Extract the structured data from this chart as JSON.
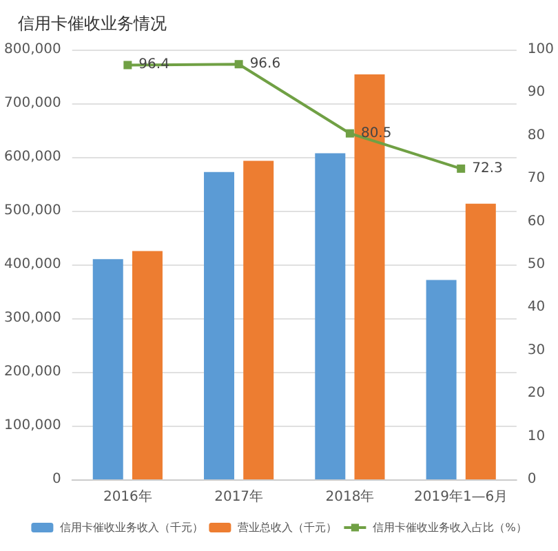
{
  "chart_data": {
    "type": "bar",
    "title": "信用卡催收业务情况",
    "categories": [
      "2016年",
      "2017年",
      "2018年",
      "2019年1—6月"
    ],
    "series": [
      {
        "name": "信用卡催收业务收入（千元）",
        "color": "#5b9bd5",
        "values": [
          410000,
          572000,
          607000,
          371000
        ]
      },
      {
        "name": "营业总收入（千元）",
        "color": "#ed7d31",
        "values": [
          425000,
          593000,
          754000,
          513000
        ]
      },
      {
        "name": "信用卡催收业务收入占比（%）",
        "type": "line",
        "axis": "y2",
        "color": "#70a044",
        "values": [
          96.4,
          96.6,
          80.5,
          72.3
        ],
        "value_labels": [
          "96.4",
          "96.6",
          "80.5",
          "72.3"
        ]
      }
    ],
    "ylim": [
      0,
      800000
    ],
    "yticks": [
      {
        "value": 0,
        "label": "0"
      },
      {
        "value": 100000,
        "label": "100,000"
      },
      {
        "value": 200000,
        "label": "200,000"
      },
      {
        "value": 300000,
        "label": "300,000"
      },
      {
        "value": 400000,
        "label": "400,000"
      },
      {
        "value": 500000,
        "label": "500,000"
      },
      {
        "value": 600000,
        "label": "600,000"
      },
      {
        "value": 700000,
        "label": "700,000"
      },
      {
        "value": 800000,
        "label": "800,000"
      }
    ],
    "y2lim": [
      0,
      100
    ],
    "y2ticks": [
      0,
      10,
      20,
      30,
      40,
      50,
      60,
      70,
      80,
      90,
      100
    ],
    "grid": "y",
    "legend": "bottom",
    "marker": "square"
  }
}
